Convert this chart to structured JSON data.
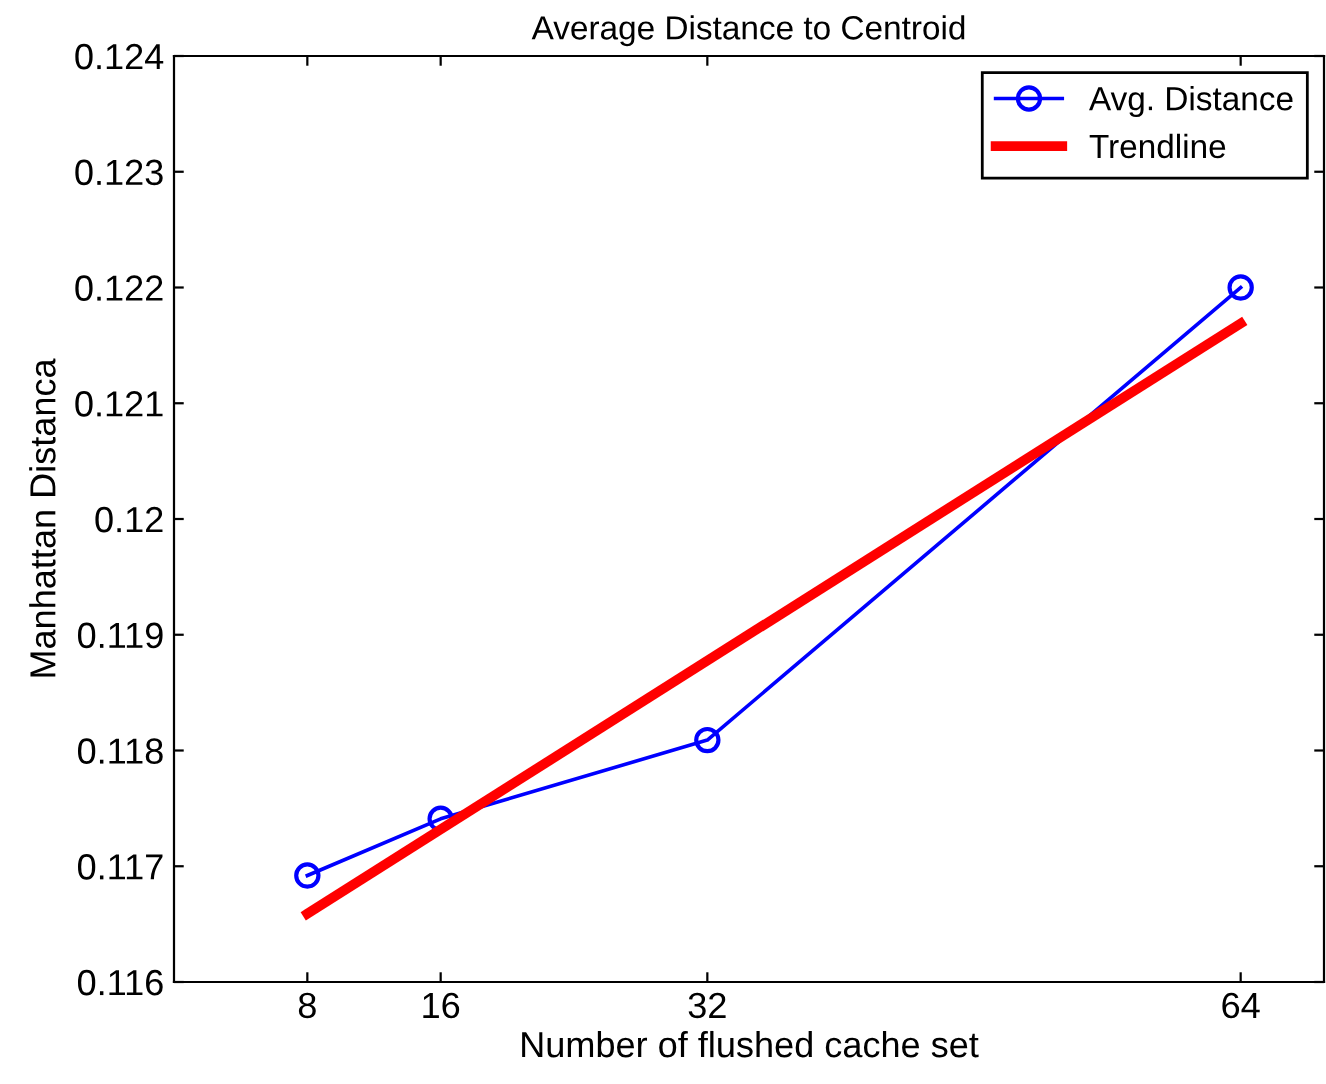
{
  "chart_data": {
    "type": "line",
    "title": "Average Distance to Centroid",
    "xlabel": "Number of flushed cache set",
    "ylabel": "Manhattan Distanca",
    "x": [
      8,
      16,
      32,
      64
    ],
    "series": [
      {
        "name": "Avg. Distance",
        "color": "#0000ff",
        "values": [
          0.11692,
          0.11741,
          0.11809,
          0.122
        ],
        "marker": "circle"
      },
      {
        "name": "Trendline",
        "color": "#ff0000",
        "type": "line",
        "x": [
          8,
          64
        ],
        "values": [
          0.11659,
          0.12169
        ],
        "marker": "none"
      }
    ],
    "xlim": [
      0,
      69
    ],
    "xticks": [
      8,
      16,
      32,
      64
    ],
    "ylim": [
      0.116,
      0.124
    ],
    "yticks": [
      0.116,
      0.117,
      0.118,
      0.119,
      0.12,
      0.121,
      0.122,
      0.123,
      0.124
    ],
    "grid": false,
    "legend": "top right",
    "line_style": "solid"
  }
}
